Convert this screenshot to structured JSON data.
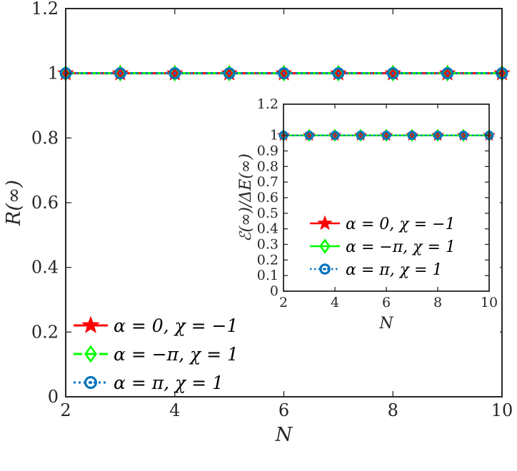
{
  "colors": {
    "series_0": "#ff0000",
    "series_1": "#00ff00",
    "series_2": "#0072bd",
    "axis": "#262626"
  },
  "chart_data": [
    {
      "type": "line",
      "xlabel": "N",
      "ylabel": "R(∞)",
      "xlim": [
        2,
        10
      ],
      "ylim": [
        0,
        1.2
      ],
      "xticks": [
        "2",
        "4",
        "6",
        "8",
        "10"
      ],
      "yticks": [
        "0",
        "0.2",
        "0.4",
        "0.6",
        "0.8",
        "1",
        "1.2"
      ],
      "x": [
        2,
        3,
        4,
        5,
        6,
        7,
        8,
        9,
        10
      ],
      "grid": false,
      "legend_position": "bottom-left",
      "series": [
        {
          "name": "α = 0, χ = −1",
          "marker": "star",
          "line": "solid",
          "values": [
            1,
            1,
            1,
            1,
            1,
            1,
            1,
            1,
            1
          ]
        },
        {
          "name": "α = −π, χ = 1",
          "marker": "diamond",
          "line": "dashed",
          "values": [
            1,
            1,
            1,
            1,
            1,
            1,
            1,
            1,
            1
          ]
        },
        {
          "name": "α = π, χ = 1",
          "marker": "circle",
          "line": "dotted",
          "values": [
            1,
            1,
            1,
            1,
            1,
            1,
            1,
            1,
            1
          ]
        }
      ]
    },
    {
      "type": "line",
      "xlabel": "N",
      "ylabel": "ℰ(∞)/ΔE(∞)",
      "xlim": [
        2,
        10
      ],
      "ylim": [
        0,
        1.2
      ],
      "xticks": [
        "2",
        "4",
        "6",
        "8",
        "10"
      ],
      "yticks": [
        "0",
        "0.1",
        "0.2",
        "0.3",
        "0.4",
        "0.5",
        "0.6",
        "0.7",
        "0.8",
        "0.9",
        "1",
        "1.2"
      ],
      "x": [
        2,
        3,
        4,
        5,
        6,
        7,
        8,
        9,
        10
      ],
      "grid": false,
      "legend_position": "bottom-right",
      "series": [
        {
          "name": "α = 0, χ = −1",
          "marker": "star",
          "line": "solid",
          "values": [
            1,
            1,
            1,
            1,
            1,
            1,
            1,
            1,
            1
          ]
        },
        {
          "name": "α = −π, χ = 1",
          "marker": "diamond",
          "line": "solid",
          "values": [
            1,
            1,
            1,
            1,
            1,
            1,
            1,
            1,
            1
          ]
        },
        {
          "name": "α = π, χ = 1",
          "marker": "circle",
          "line": "dotted",
          "values": [
            1,
            1,
            1,
            1,
            1,
            1,
            1,
            1,
            1
          ]
        }
      ]
    }
  ]
}
